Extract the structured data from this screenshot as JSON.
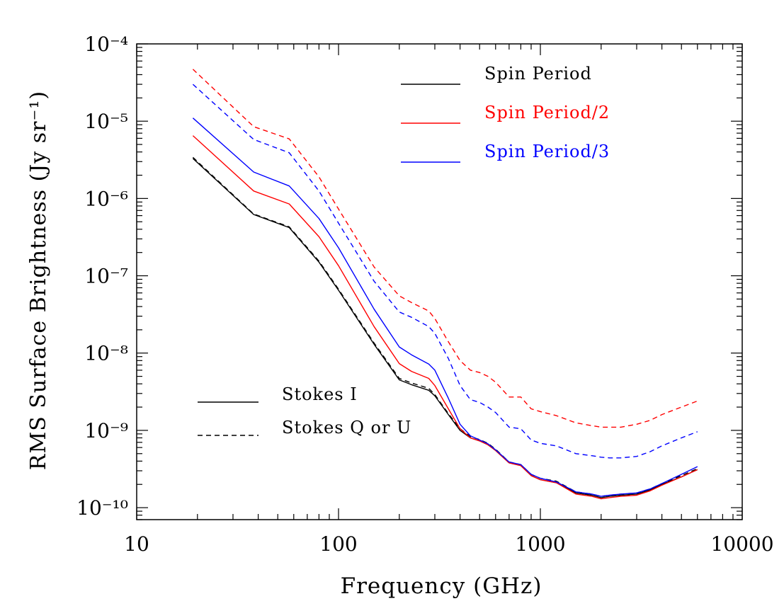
{
  "chart_data": {
    "type": "line",
    "title": "",
    "xlabel": "Frequency (GHz)",
    "ylabel": "RMS Surface Brightness (Jy sr⁻¹)",
    "xscale": "log",
    "yscale": "log",
    "xlim": [
      10,
      10000
    ],
    "ylim": [
      7e-11,
      0.0001
    ],
    "grid": false,
    "x_ticks": [
      {
        "value": 10,
        "label": "10"
      },
      {
        "value": 100,
        "label": "100"
      },
      {
        "value": 1000,
        "label": "1000"
      },
      {
        "value": 10000,
        "label": "10000"
      }
    ],
    "y_ticks": [
      {
        "value": 0.0001,
        "label": "10⁻⁴"
      },
      {
        "value": 1e-05,
        "label": "10⁻⁵"
      },
      {
        "value": 1e-06,
        "label": "10⁻⁶"
      },
      {
        "value": 1e-07,
        "label": "10⁻⁷"
      },
      {
        "value": 1e-08,
        "label": "10⁻⁸"
      },
      {
        "value": 1e-09,
        "label": "10⁻⁹"
      },
      {
        "value": 1e-10,
        "label": "10⁻¹⁰"
      }
    ],
    "legend_color": {
      "position": "top-right",
      "entries": [
        {
          "label": "Spin Period",
          "color": "#000000"
        },
        {
          "label": "Spin Period/2",
          "color": "#ff0000"
        },
        {
          "label": "Spin Period/3",
          "color": "#0000ff"
        }
      ]
    },
    "legend_style": {
      "position": "bottom-left",
      "entries": [
        {
          "label": "Stokes I",
          "linestyle": "solid"
        },
        {
          "label": "Stokes Q or U",
          "linestyle": "dashed"
        }
      ]
    },
    "x": [
      19,
      38,
      57,
      80,
      100,
      150,
      200,
      230,
      280,
      300,
      350,
      400,
      450,
      500,
      550,
      600,
      700,
      800,
      900,
      1000,
      1200,
      1500,
      1800,
      2000,
      2200,
      2500,
      3000,
      3500,
      4000,
      5000,
      6000
    ],
    "series": [
      {
        "period": "Spin Period",
        "stokes": "Stokes I",
        "color": "#000000",
        "linestyle": "solid",
        "values": [
          3.3e-06,
          6.2e-07,
          4.2e-07,
          1.5e-07,
          6.5e-08,
          1.3e-08,
          4.5e-09,
          3.9e-09,
          3.3e-09,
          2.8e-09,
          1.6e-09,
          1e-09,
          8e-10,
          7.3e-10,
          6.5e-10,
          5.5e-10,
          3.8e-10,
          3.5e-10,
          2.6e-10,
          2.3e-10,
          2.1e-10,
          1.55e-10,
          1.45e-10,
          1.35e-10,
          1.4e-10,
          1.45e-10,
          1.5e-10,
          1.7e-10,
          2e-10,
          2.5e-10,
          3.1e-10
        ]
      },
      {
        "period": "Spin Period",
        "stokes": "Stokes Q or U",
        "color": "#000000",
        "linestyle": "dashed",
        "values": [
          3.4e-06,
          6.3e-07,
          4.3e-07,
          1.55e-07,
          6.7e-08,
          1.35e-08,
          4.7e-09,
          4.1e-09,
          3.5e-09,
          2.9e-09,
          1.65e-09,
          1.05e-09,
          8.3e-10,
          7.6e-10,
          6.8e-10,
          5.7e-10,
          3.9e-10,
          3.6e-10,
          2.7e-10,
          2.4e-10,
          2.2e-10,
          1.6e-10,
          1.5e-10,
          1.4e-10,
          1.45e-10,
          1.5e-10,
          1.55e-10,
          1.75e-10,
          2.05e-10,
          2.6e-10,
          3.2e-10
        ]
      },
      {
        "period": "Spin Period/2",
        "stokes": "Stokes I",
        "color": "#ff0000",
        "linestyle": "solid",
        "values": [
          6.5e-06,
          1.25e-06,
          8.5e-07,
          3.2e-07,
          1.35e-07,
          2.2e-08,
          7.3e-09,
          5.8e-09,
          4.7e-09,
          3.8e-09,
          1.9e-09,
          1.05e-09,
          8e-10,
          7.3e-10,
          6.5e-10,
          5.5e-10,
          3.8e-10,
          3.5e-10,
          2.6e-10,
          2.3e-10,
          2.1e-10,
          1.5e-10,
          1.4e-10,
          1.3e-10,
          1.35e-10,
          1.4e-10,
          1.45e-10,
          1.65e-10,
          1.95e-10,
          2.5e-10,
          3.1e-10
        ]
      },
      {
        "period": "Spin Period/2",
        "stokes": "Stokes Q or U",
        "color": "#ff0000",
        "linestyle": "dashed",
        "values": [
          4.7e-05,
          8.5e-06,
          5.9e-06,
          1.9e-06,
          7.3e-07,
          1.3e-07,
          5.5e-08,
          4.5e-08,
          3.5e-08,
          2.8e-08,
          1.4e-08,
          8e-09,
          6e-09,
          5.6e-09,
          5e-09,
          4.2e-09,
          2.7e-09,
          2.7e-09,
          1.9e-09,
          1.75e-09,
          1.55e-09,
          1.25e-09,
          1.15e-09,
          1.1e-09,
          1.1e-09,
          1.1e-09,
          1.2e-09,
          1.35e-09,
          1.6e-09,
          2e-09,
          2.4e-09
        ]
      },
      {
        "period": "Spin Period/3",
        "stokes": "Stokes I",
        "color": "#0000ff",
        "linestyle": "solid",
        "values": [
          1.1e-05,
          2.2e-06,
          1.45e-06,
          5.5e-07,
          2.3e-07,
          3.7e-08,
          1.2e-08,
          9.5e-09,
          7.2e-09,
          6e-09,
          2.6e-09,
          1.2e-09,
          8.5e-10,
          7.5e-10,
          6.7e-10,
          5.6e-10,
          3.9e-10,
          3.6e-10,
          2.7e-10,
          2.4e-10,
          2.15e-10,
          1.6e-10,
          1.5e-10,
          1.4e-10,
          1.45e-10,
          1.5e-10,
          1.55e-10,
          1.75e-10,
          2.05e-10,
          2.7e-10,
          3.4e-10
        ]
      },
      {
        "period": "Spin Period/3",
        "stokes": "Stokes Q or U",
        "color": "#0000ff",
        "linestyle": "dashed",
        "values": [
          3e-05,
          5.8e-06,
          3.9e-06,
          1.25e-06,
          4.8e-07,
          8.5e-08,
          3.4e-08,
          2.9e-08,
          2.2e-08,
          1.8e-08,
          8.5e-09,
          3.8e-09,
          2.5e-09,
          2.3e-09,
          2e-09,
          1.7e-09,
          1.1e-09,
          1.05e-09,
          7.5e-10,
          6.8e-10,
          6.3e-10,
          5e-10,
          4.7e-10,
          4.5e-10,
          4.4e-10,
          4.4e-10,
          4.6e-10,
          5.3e-10,
          6.3e-10,
          8e-10,
          9.6e-10
        ]
      }
    ]
  }
}
